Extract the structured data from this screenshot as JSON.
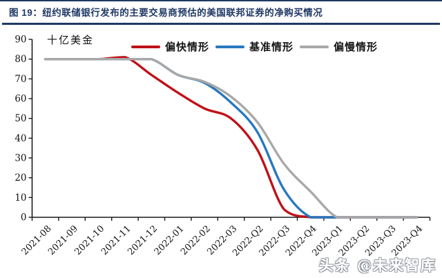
{
  "header": {
    "title": "图 19：纽约联储银行发布的主要交易商预估的美国联邦证券的净购买情况",
    "accent_color": "#1f3864"
  },
  "watermark": "头条 @未来智库",
  "chart_data": {
    "type": "line",
    "title": "纽约联储银行发布的主要交易商预估的美国联邦证券的净购买情况",
    "unit_label": "十亿美金",
    "xlabel": "",
    "ylabel": "十亿美金",
    "ylim": [
      0,
      90
    ],
    "ytick_step": 10,
    "grid": false,
    "legend_position": "top",
    "axis_color": "#1a1a1a",
    "categories": [
      "2021-08",
      "2021-09",
      "2021-10",
      "2021-11",
      "2021-12",
      "2022-01",
      "2022-02",
      "2022-03",
      "2022-Q2",
      "2022-Q3",
      "2022-Q4",
      "2023-Q1",
      "2023-Q2",
      "2023-Q3",
      "2023-Q4"
    ],
    "series": [
      {
        "name": "偏快情形",
        "color": "#c01118",
        "values": [
          80,
          80,
          80,
          81,
          72,
          63,
          55,
          50,
          34,
          4,
          0,
          0,
          0,
          0,
          0
        ]
      },
      {
        "name": "基准情形",
        "color": "#2878bf",
        "values": [
          80,
          80,
          80,
          80,
          80,
          72,
          68,
          58,
          43,
          14,
          0,
          0,
          0,
          0,
          0
        ]
      },
      {
        "name": "偏慢情形",
        "color": "#a8a8a8",
        "values": [
          80,
          80,
          80,
          80,
          80,
          72,
          68.5,
          61,
          48,
          27,
          13,
          0,
          0,
          0,
          0
        ]
      }
    ]
  }
}
